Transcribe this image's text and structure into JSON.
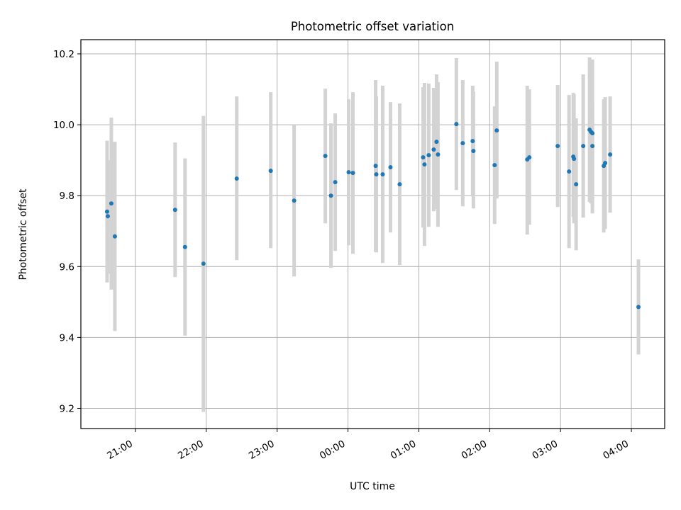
{
  "chart_data": {
    "type": "scatter",
    "title": "Photometric offset variation",
    "xlabel": "UTC time",
    "ylabel": "Photometric offset",
    "x_unit": "hours relative to 00:00 UTC",
    "x_ticks": [
      {
        "value": -3,
        "label": "21:00"
      },
      {
        "value": -2,
        "label": "22:00"
      },
      {
        "value": -1,
        "label": "23:00"
      },
      {
        "value": 0,
        "label": "00:00"
      },
      {
        "value": 1,
        "label": "01:00"
      },
      {
        "value": 2,
        "label": "02:00"
      },
      {
        "value": 3,
        "label": "03:00"
      },
      {
        "value": 4,
        "label": "04:00"
      }
    ],
    "y_ticks": [
      {
        "value": 9.2,
        "label": "9.2"
      },
      {
        "value": 9.4,
        "label": "9.4"
      },
      {
        "value": 9.6,
        "label": "9.6"
      },
      {
        "value": 9.8,
        "label": "9.8"
      },
      {
        "value": 10.0,
        "label": "10.0"
      },
      {
        "value": 10.2,
        "label": "10.2"
      }
    ],
    "xlim": [
      -3.77,
      4.47
    ],
    "ylim": [
      9.143,
      10.24
    ],
    "grid": true,
    "colors": {
      "marker": "#1f77b4",
      "errorbar": "#d3d3d3",
      "grid": "#b0b0b0"
    },
    "points": [
      {
        "x": -3.4,
        "y": 9.755,
        "lo": 9.555,
        "hi": 9.955
      },
      {
        "x": -3.39,
        "y": 9.742,
        "lo": 9.58,
        "hi": 9.9
      },
      {
        "x": -3.34,
        "y": 9.778,
        "lo": 9.535,
        "hi": 10.02
      },
      {
        "x": -3.29,
        "y": 9.685,
        "lo": 9.418,
        "hi": 9.952
      },
      {
        "x": -2.44,
        "y": 9.76,
        "lo": 9.57,
        "hi": 9.95
      },
      {
        "x": -2.3,
        "y": 9.655,
        "lo": 9.405,
        "hi": 9.905
      },
      {
        "x": -2.04,
        "y": 9.608,
        "lo": 9.19,
        "hi": 10.025
      },
      {
        "x": -1.57,
        "y": 9.848,
        "lo": 9.618,
        "hi": 10.08
      },
      {
        "x": -1.09,
        "y": 9.87,
        "lo": 9.652,
        "hi": 10.092
      },
      {
        "x": -0.76,
        "y": 9.786,
        "lo": 9.572,
        "hi": 10.0
      },
      {
        "x": -0.32,
        "y": 9.912,
        "lo": 9.722,
        "hi": 10.102
      },
      {
        "x": -0.24,
        "y": 9.8,
        "lo": 9.596,
        "hi": 10.004
      },
      {
        "x": -0.18,
        "y": 9.838,
        "lo": 9.644,
        "hi": 10.032
      },
      {
        "x": 0.01,
        "y": 9.866,
        "lo": 9.66,
        "hi": 10.072
      },
      {
        "x": 0.07,
        "y": 9.864,
        "lo": 9.636,
        "hi": 10.092
      },
      {
        "x": 0.39,
        "y": 9.884,
        "lo": 9.642,
        "hi": 10.126
      },
      {
        "x": 0.4,
        "y": 9.86,
        "lo": 9.64,
        "hi": 10.08
      },
      {
        "x": 0.49,
        "y": 9.86,
        "lo": 9.61,
        "hi": 10.11
      },
      {
        "x": 0.6,
        "y": 9.88,
        "lo": 9.696,
        "hi": 10.064
      },
      {
        "x": 0.73,
        "y": 9.832,
        "lo": 9.604,
        "hi": 10.06
      },
      {
        "x": 1.06,
        "y": 9.908,
        "lo": 9.71,
        "hi": 10.106
      },
      {
        "x": 1.08,
        "y": 9.888,
        "lo": 9.658,
        "hi": 10.118
      },
      {
        "x": 1.14,
        "y": 9.914,
        "lo": 9.712,
        "hi": 10.116
      },
      {
        "x": 1.21,
        "y": 9.93,
        "lo": 9.756,
        "hi": 10.104
      },
      {
        "x": 1.25,
        "y": 9.952,
        "lo": 9.762,
        "hi": 10.142
      },
      {
        "x": 1.27,
        "y": 9.916,
        "lo": 9.712,
        "hi": 10.12
      },
      {
        "x": 1.53,
        "y": 10.002,
        "lo": 9.816,
        "hi": 10.188
      },
      {
        "x": 1.62,
        "y": 9.948,
        "lo": 9.77,
        "hi": 10.126
      },
      {
        "x": 1.76,
        "y": 9.954,
        "lo": 9.798,
        "hi": 10.11
      },
      {
        "x": 1.77,
        "y": 9.926,
        "lo": 9.764,
        "hi": 10.094
      },
      {
        "x": 2.07,
        "y": 9.886,
        "lo": 9.72,
        "hi": 10.052
      },
      {
        "x": 2.1,
        "y": 9.984,
        "lo": 9.792,
        "hi": 10.178
      },
      {
        "x": 2.53,
        "y": 9.902,
        "lo": 9.69,
        "hi": 10.11
      },
      {
        "x": 2.56,
        "y": 9.908,
        "lo": 9.718,
        "hi": 10.1
      },
      {
        "x": 2.96,
        "y": 9.94,
        "lo": 9.768,
        "hi": 10.112
      },
      {
        "x": 3.12,
        "y": 9.868,
        "lo": 9.652,
        "hi": 10.084
      },
      {
        "x": 3.18,
        "y": 9.91,
        "lo": 9.74,
        "hi": 10.09
      },
      {
        "x": 3.19,
        "y": 9.904,
        "lo": 9.722,
        "hi": 10.086
      },
      {
        "x": 3.22,
        "y": 9.832,
        "lo": 9.646,
        "hi": 10.018
      },
      {
        "x": 3.32,
        "y": 9.94,
        "lo": 9.738,
        "hi": 10.142
      },
      {
        "x": 3.41,
        "y": 9.986,
        "lo": 9.782,
        "hi": 10.19
      },
      {
        "x": 3.43,
        "y": 9.98,
        "lo": 9.778,
        "hi": 10.18
      },
      {
        "x": 3.45,
        "y": 9.976,
        "lo": 9.77,
        "hi": 10.184
      },
      {
        "x": 3.45,
        "y": 9.94,
        "lo": 9.75,
        "hi": 10.06
      },
      {
        "x": 3.61,
        "y": 9.884,
        "lo": 9.696,
        "hi": 10.072
      },
      {
        "x": 3.63,
        "y": 9.892,
        "lo": 9.706,
        "hi": 10.078
      },
      {
        "x": 3.7,
        "y": 9.916,
        "lo": 9.752,
        "hi": 10.08
      },
      {
        "x": 4.1,
        "y": 9.486,
        "lo": 9.352,
        "hi": 9.62
      }
    ]
  }
}
